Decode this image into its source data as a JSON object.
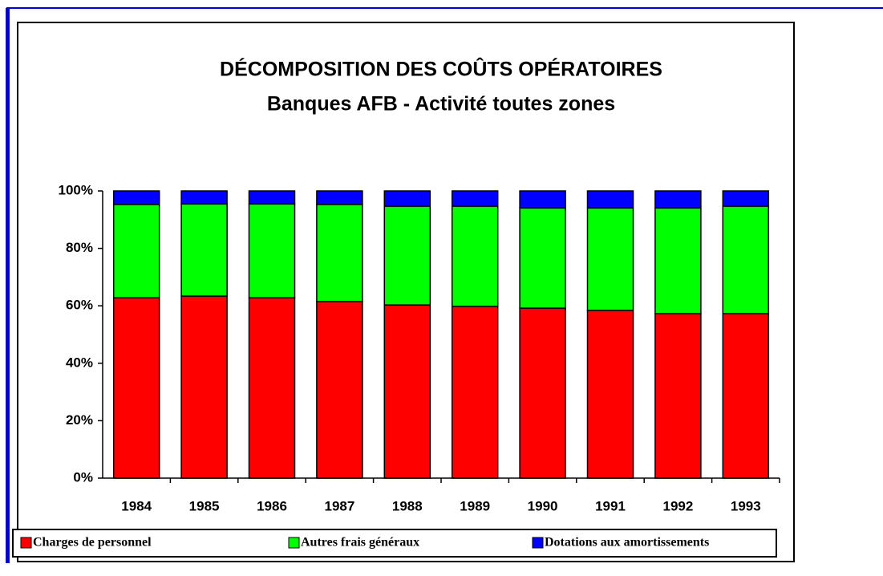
{
  "chart_data": {
    "type": "stacked_bar",
    "title": "DÉCOMPOSITION DES COÛTS OPÉRATOIRES",
    "subtitle": "Banques AFB - Activité toutes zones",
    "categories": [
      "1984",
      "1985",
      "1986",
      "1987",
      "1988",
      "1989",
      "1990",
      "1991",
      "1992",
      "1993"
    ],
    "series": [
      {
        "name": "Charges de personnel",
        "color": "#ff0000",
        "values": [
          62.8,
          63.4,
          62.8,
          61.5,
          60.3,
          59.8,
          59.2,
          58.4,
          57.3,
          57.3
        ]
      },
      {
        "name": "Autres frais généraux",
        "color": "#00ff00",
        "values": [
          32.5,
          32.1,
          32.7,
          33.8,
          34.4,
          34.9,
          34.9,
          35.7,
          36.8,
          37.4
        ]
      },
      {
        "name": "Dotations aux amortissements",
        "color": "#0000ff",
        "values": [
          4.7,
          4.5,
          4.5,
          4.7,
          5.3,
          5.3,
          5.9,
          5.9,
          5.9,
          5.3
        ]
      }
    ],
    "ylim": [
      0,
      100
    ],
    "yticks": [
      {
        "value": 0,
        "label": "0%"
      },
      {
        "value": 20,
        "label": "20%"
      },
      {
        "value": 40,
        "label": "40%"
      },
      {
        "value": 60,
        "label": "60%"
      },
      {
        "value": 80,
        "label": "80%"
      },
      {
        "value": 100,
        "label": "100%"
      }
    ],
    "legend": "bottom"
  }
}
